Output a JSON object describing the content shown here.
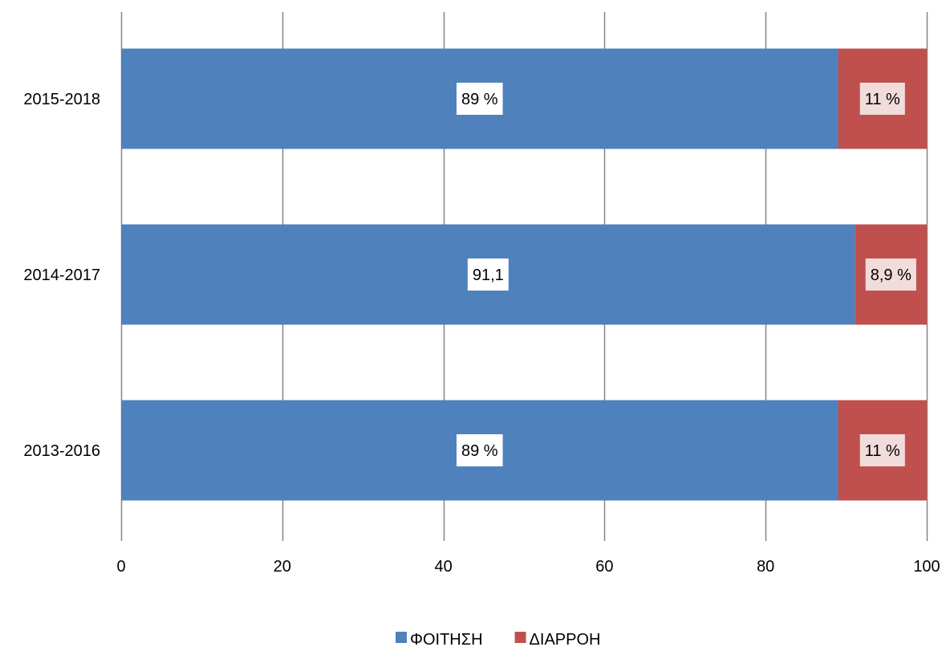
{
  "chart_data": {
    "type": "bar",
    "orientation": "horizontal",
    "stacked": true,
    "categories": [
      "2015-2018",
      "2014-2017",
      "2013-2016"
    ],
    "series": [
      {
        "name": "ΦΟΙΤΗΣΗ",
        "color": "#4F81BD",
        "values": [
          89,
          91.1,
          89
        ],
        "labels": [
          "89 %",
          "91,1",
          "89 %"
        ],
        "label_bg": "#ffffff"
      },
      {
        "name": "ΔΙΑΡΡΟΗ",
        "color": "#C0504D",
        "values": [
          11,
          8.9,
          11
        ],
        "labels": [
          "11 %",
          "8,9 %",
          "11 %"
        ],
        "label_bg": "#F2DCDB"
      }
    ],
    "xlim": [
      0,
      100
    ],
    "xticks": [
      0,
      20,
      40,
      60,
      80,
      100
    ],
    "xtick_labels": [
      "0",
      "20",
      "40",
      "60",
      "80",
      "100"
    ],
    "grid": "vertical",
    "gridline_color": "#868686",
    "legend_position": "bottom"
  }
}
